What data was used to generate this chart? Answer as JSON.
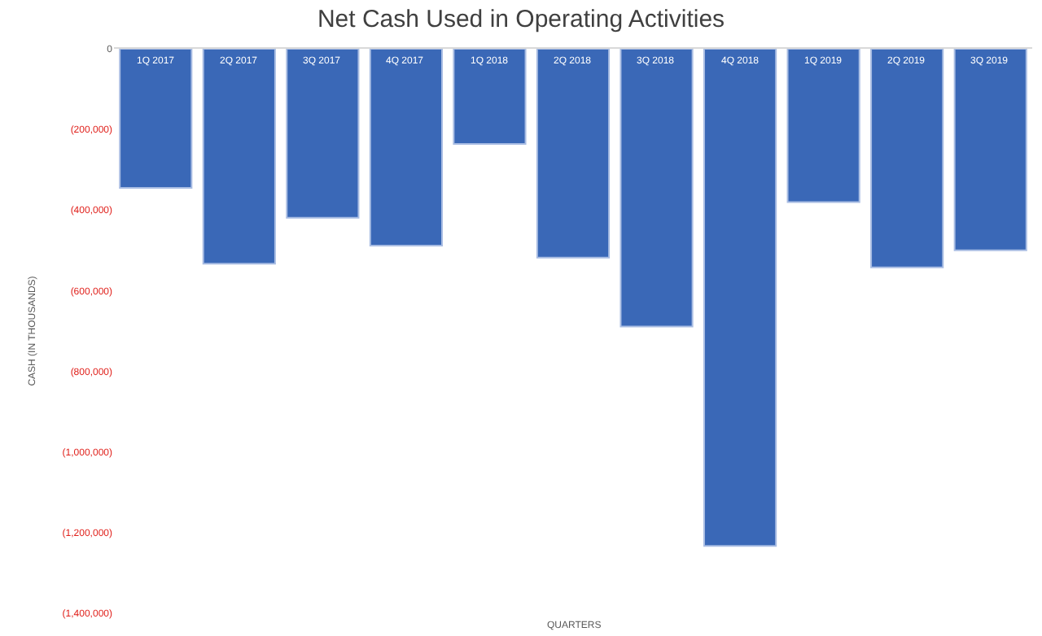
{
  "chart_data": {
    "type": "bar",
    "title": "Net Cash Used in Operating Activities",
    "xlabel": "QUARTERS",
    "ylabel": "CASH (IN THOUSANDS)",
    "categories": [
      "1Q 2017",
      "2Q 2017",
      "3Q 2017",
      "4Q 2017",
      "1Q 2018",
      "2Q 2018",
      "3Q 2018",
      "4Q 2018",
      "1Q 2019",
      "2Q 2019",
      "3Q 2019"
    ],
    "values": [
      -345000,
      -533000,
      -419000,
      -488000,
      -236000,
      -518000,
      -689000,
      -1233000,
      -380000,
      -542000,
      -500000
    ],
    "color": "#3a68b7",
    "ylim": [
      -1400000,
      0
    ],
    "yticks": [
      0,
      {
        "value": -200000,
        "label": "(200,000)"
      },
      {
        "value": -400000,
        "label": "(400,000)"
      },
      {
        "value": -600000,
        "label": "(600,000)"
      },
      {
        "value": -800000,
        "label": "(800,000)"
      },
      {
        "value": -1000000,
        "label": "(1,000,000)"
      },
      {
        "value": -1200000,
        "label": "(1,200,000)"
      },
      {
        "value": -1400000,
        "label": "(1,400,000)"
      }
    ]
  }
}
